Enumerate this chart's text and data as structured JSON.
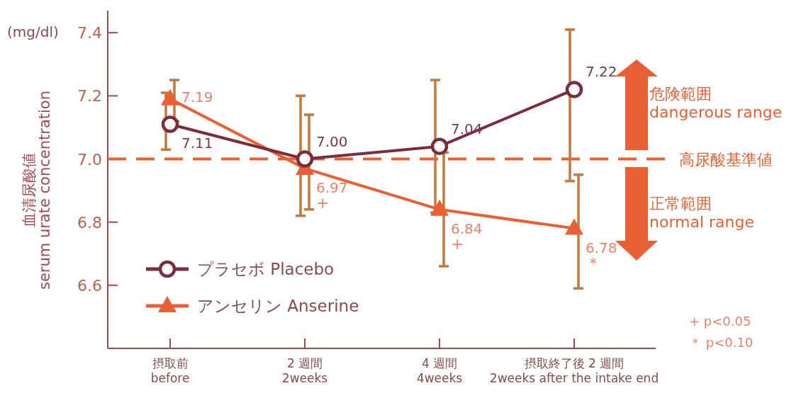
{
  "chart_data": {
    "type": "line",
    "ylabel": "血清尿酸値\nserum urate concentration",
    "categories": [
      "摂取前\nbefore",
      "2 週間\n2weeks",
      "4 週間\n4weeks",
      "摂取終了後 2 週間\n2weeks after the intake end"
    ],
    "series": [
      {
        "name": "プラセボ Placebo",
        "color": "#7b2d3b",
        "marker": "circle",
        "values": [
          7.11,
          7.0,
          7.04,
          7.22
        ],
        "value_labels": [
          "7.11",
          "7.00",
          "7.04",
          "7.22"
        ],
        "errors": [
          [
            7.03,
            7.21
          ],
          [
            6.82,
            7.2
          ],
          [
            6.83,
            7.25
          ],
          [
            6.93,
            7.41
          ]
        ]
      },
      {
        "name": "アンセリン Anserine",
        "color": "#ea6035",
        "marker": "triangle",
        "values": [
          7.19,
          6.97,
          6.84,
          6.78
        ],
        "value_labels": [
          "7.19",
          "6.97",
          "6.84",
          "6.78"
        ],
        "errors": [
          [
            7.12,
            7.25
          ],
          [
            6.84,
            7.14
          ],
          [
            6.66,
            7.02
          ],
          [
            6.59,
            6.95
          ]
        ]
      }
    ],
    "ylim": [
      6.4,
      7.47
    ],
    "yticks": [
      6.6,
      6.8,
      {
        "value": 7.0,
        "label": "7.0"
      },
      7.2,
      7.4
    ],
    "data_labels": true,
    "legend": "bottom left",
    "grid": false,
    "ref_lines": [
      {
        "axis": "y",
        "value": 7.0,
        "label": "高尿酸基準値",
        "color": "#ea6035",
        "line_style": "dashed"
      }
    ],
    "annotations": [
      "(mg/dl)",
      "危険範囲\ndangerous range",
      "正常範囲\nnormal range",
      {
        "text": "+",
        "x": "2 週間\n2weeks",
        "y": 6.97
      },
      {
        "text": "+",
        "x": "4 週間\n4weeks",
        "y": 6.84
      },
      {
        "text": "＊",
        "x": "摂取終了後 2 週間\n2weeks after the intake end",
        "y": 6.78
      },
      "+ p<0.05",
      "＊ p<0.10"
    ]
  }
}
